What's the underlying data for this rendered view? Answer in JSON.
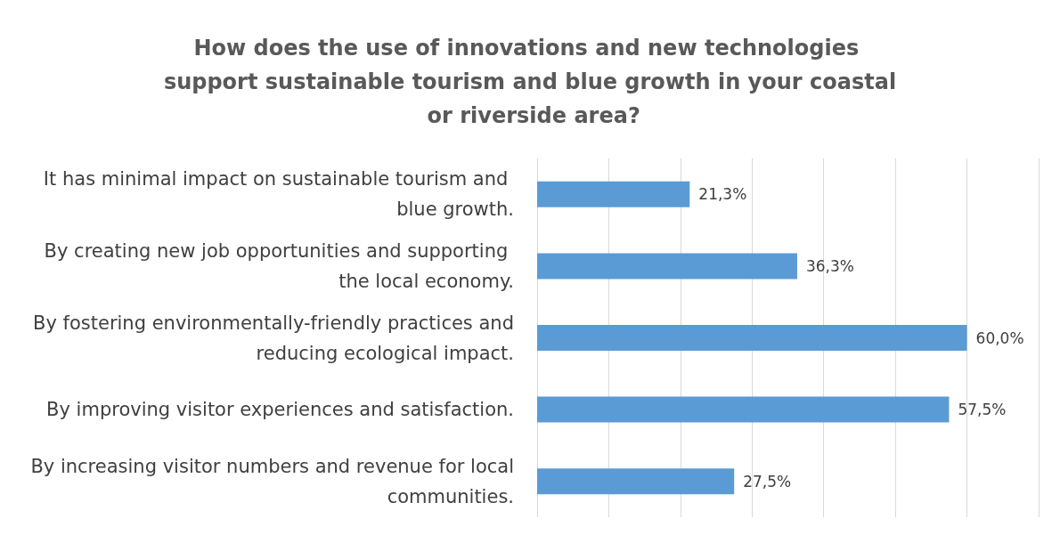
{
  "chart_data": {
    "type": "bar",
    "orientation": "horizontal",
    "title": "How does the use of innovations and new technologies support sustainable tourism and blue growth in your coastal or riverside area?",
    "categories": [
      "It has minimal impact on sustainable tourism and blue growth.",
      "By creating new job opportunities and supporting the local economy.",
      "By fostering environmentally-friendly practices and reducing ecological impact.",
      "By improving visitor experiences and satisfaction.",
      "By increasing visitor numbers and revenue for local communities."
    ],
    "values": [
      21.3,
      36.3,
      60.0,
      57.5,
      27.5
    ],
    "value_labels": [
      "21,3%",
      "36,3%",
      "60,0%",
      "57,5%",
      "27,5%"
    ],
    "color": "#5b9bd5",
    "xlim": [
      0,
      70
    ],
    "xticks": [
      {
        "value": 0,
        "label": null
      },
      {
        "value": 10,
        "label": null
      },
      {
        "value": 20,
        "label": null
      },
      {
        "value": 30,
        "label": null
      },
      {
        "value": 40,
        "label": null
      },
      {
        "value": 50,
        "label": null
      },
      {
        "value": 60,
        "label": null
      },
      {
        "value": 70,
        "label": null
      }
    ],
    "grid": "x",
    "tick_labels": "y"
  }
}
